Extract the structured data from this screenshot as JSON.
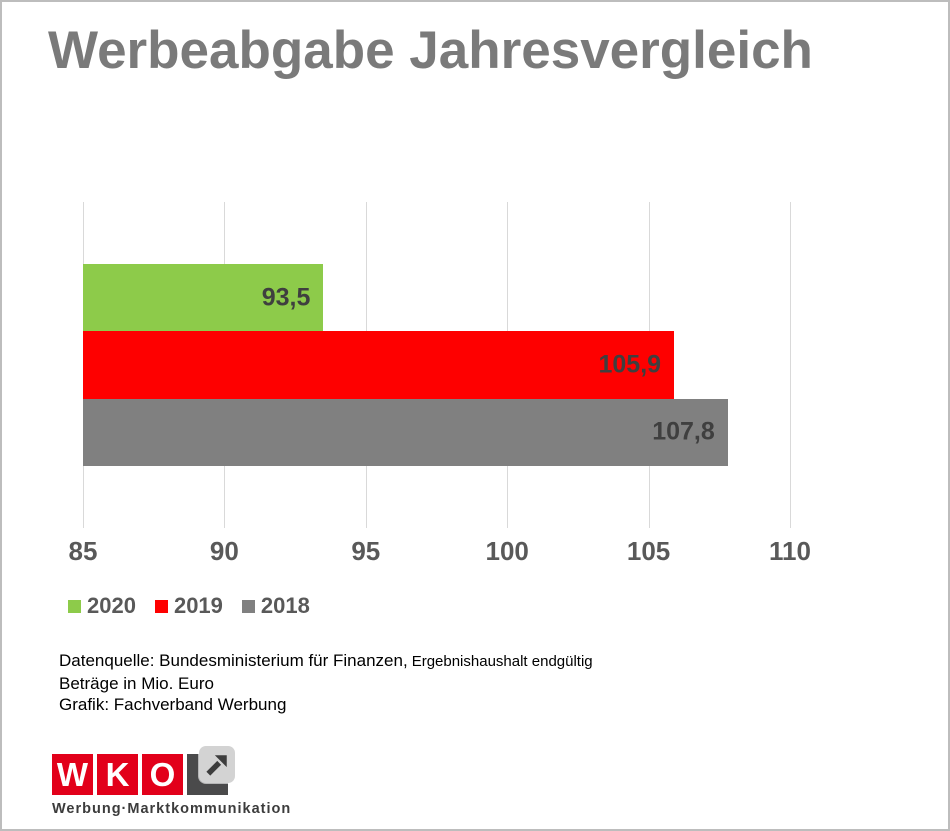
{
  "title": "Werbeabgabe Jahresvergleich",
  "chart_data": {
    "type": "bar",
    "orientation": "horizontal",
    "title": "Werbeabgabe Jahresvergleich",
    "unit": "Mio. Euro",
    "xlim": [
      85,
      110
    ],
    "x_ticks": [
      85,
      90,
      95,
      100,
      105,
      110
    ],
    "grid": "vertical",
    "legend_position": "bottom-left",
    "series": [
      {
        "name": "2020",
        "value": 93.5,
        "value_label": "93,5",
        "color": "#8dcb4a"
      },
      {
        "name": "2019",
        "value": 105.9,
        "value_label": "105,9",
        "color": "#fe0000"
      },
      {
        "name": "2018",
        "value": 107.8,
        "value_label": "107,8",
        "color": "#808080"
      }
    ]
  },
  "footer": {
    "source_main": "Datenquelle: Bundesministerium für Finanzen,",
    "source_note": "Ergebnishaushalt endgültig",
    "amounts": "Beträge in Mio. Euro",
    "credit": "Grafik: Fachverband Werbung"
  },
  "logo": {
    "letters": [
      "W",
      "K",
      "O"
    ],
    "caption": "Werbung·Marktkommunikation",
    "brand_red": "#e2001a",
    "dark_gray": "#4a4a4b"
  },
  "colors": {
    "title_text": "#7a7a7a",
    "axis_text": "#595959",
    "bar_label_text": "#3f3f3f",
    "gridline": "#d9d9d9"
  }
}
